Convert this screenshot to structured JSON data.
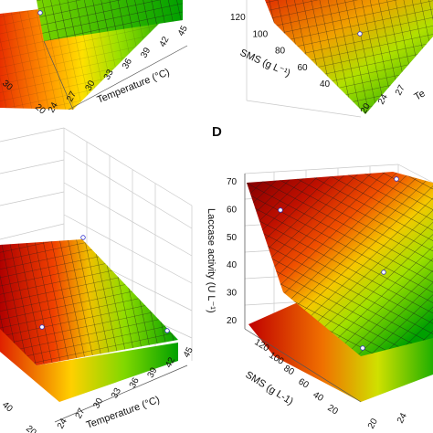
{
  "chart_data": [
    {
      "type": "surface",
      "panel": "top-left",
      "xlabel": "Temperature (°C)",
      "x_ticks": [
        "24",
        "27",
        "30",
        "33",
        "36",
        "39",
        "42",
        "45"
      ],
      "y_ticks": [
        "20",
        "30"
      ]
    },
    {
      "type": "surface",
      "panel": "top-right",
      "ylabel": "SMS (g L⁻¹)",
      "y_ticks": [
        "40",
        "60",
        "80",
        "100",
        "120"
      ],
      "x_ticks": [
        "20",
        "24",
        "27"
      ],
      "xlabel_fragment": "Te"
    },
    {
      "type": "surface",
      "panel": "bottom-left",
      "xlabel": "Temperature (°C)",
      "x_ticks": [
        "24",
        "27",
        "30",
        "33",
        "36",
        "39",
        "42",
        "45"
      ],
      "y_ticks": [
        "20",
        "40"
      ]
    },
    {
      "type": "surface",
      "panel": "D",
      "zlabel": "Laccase activity (U L⁻¹)",
      "ylabel": "SMS (g L-1)",
      "z_ticks": [
        20,
        30,
        40,
        50,
        60,
        70
      ],
      "zlim": [
        20,
        70
      ],
      "y_ticks": [
        "20",
        "40",
        "60",
        "80",
        "100",
        "120"
      ],
      "x_ticks": [
        "20",
        "24"
      ],
      "colormap": [
        "#00a000",
        "#9be000",
        "#ffd000",
        "#f05000",
        "#c00000",
        "#8a0000"
      ]
    }
  ],
  "labels": {
    "panel_d": "D"
  },
  "tick_labels": {
    "tl_x": [
      "24",
      "27",
      "30",
      "33",
      "36",
      "39",
      "42",
      "45"
    ],
    "tl_y": [
      "20",
      "30"
    ],
    "tr_y": [
      "40",
      "60",
      "80",
      "100",
      "120"
    ],
    "tr_x": [
      "20",
      "24",
      "27"
    ],
    "bl_x": [
      "24",
      "27",
      "30",
      "33",
      "36",
      "39",
      "42",
      "45"
    ],
    "bl_y": [
      "20",
      "40"
    ],
    "d_z": [
      "20",
      "30",
      "40",
      "50",
      "60",
      "70"
    ],
    "d_y": [
      "20",
      "40",
      "60",
      "80",
      "100",
      "120"
    ],
    "d_x": [
      "20",
      "24"
    ]
  },
  "axis_labels": {
    "tl_x": "Temperature (°C)",
    "tr_y": "SMS (g L⁻¹)",
    "tr_x_fragment": "Te",
    "bl_x": "Temperature (°C)",
    "d_z": "Laccase activity (U L⁻¹)",
    "d_y": "SMS (g L-1)"
  }
}
